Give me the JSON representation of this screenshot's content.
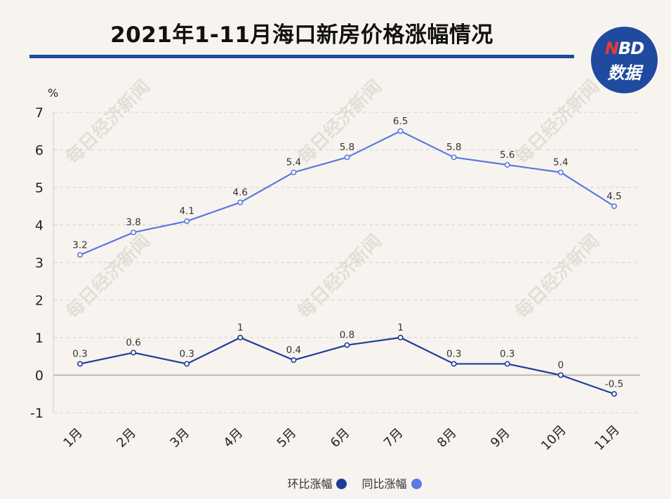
{
  "title": "2021年1-11月海口新房价格涨幅情况",
  "logo": {
    "top_n": "N",
    "top_rest": "BD",
    "bottom": "数据"
  },
  "watermark_text": "每日经济新闻",
  "chart_data": {
    "type": "line",
    "title": "2021年1-11月海口新房价格涨幅情况",
    "unit_label": "%",
    "categories": [
      "1月",
      "2月",
      "3月",
      "4月",
      "5月",
      "6月",
      "7月",
      "8月",
      "9月",
      "10月",
      "11月"
    ],
    "ylim": [
      -1,
      7
    ],
    "yticks": [
      -1,
      0,
      1,
      2,
      3,
      4,
      5,
      6,
      7
    ],
    "grid": true,
    "legend_position": "bottom",
    "series": [
      {
        "name": "同比涨幅",
        "color": "#5b79e0",
        "values": [
          3.2,
          3.8,
          4.1,
          4.6,
          5.4,
          5.8,
          6.5,
          5.8,
          5.6,
          5.4,
          4.5
        ],
        "labels": [
          "3.2",
          "3.8",
          "4.1",
          "4.6",
          "5.4",
          "5.8",
          "6.5",
          "5.8",
          "5.6",
          "5.4",
          "4.5"
        ]
      },
      {
        "name": "环比涨幅",
        "color": "#1e3d98",
        "values": [
          0.3,
          0.6,
          0.3,
          1,
          0.4,
          0.8,
          1,
          0.3,
          0.3,
          0,
          -0.5
        ],
        "labels": [
          "0.3",
          "0.6",
          "0.3",
          "1",
          "0.4",
          "0.8",
          "1",
          "0.3",
          "0.3",
          "0",
          "-0.5"
        ]
      }
    ]
  },
  "legend": [
    {
      "label": "环比涨幅",
      "color": "#1e3d98"
    },
    {
      "label": "同比涨幅",
      "color": "#5b79e0"
    }
  ]
}
